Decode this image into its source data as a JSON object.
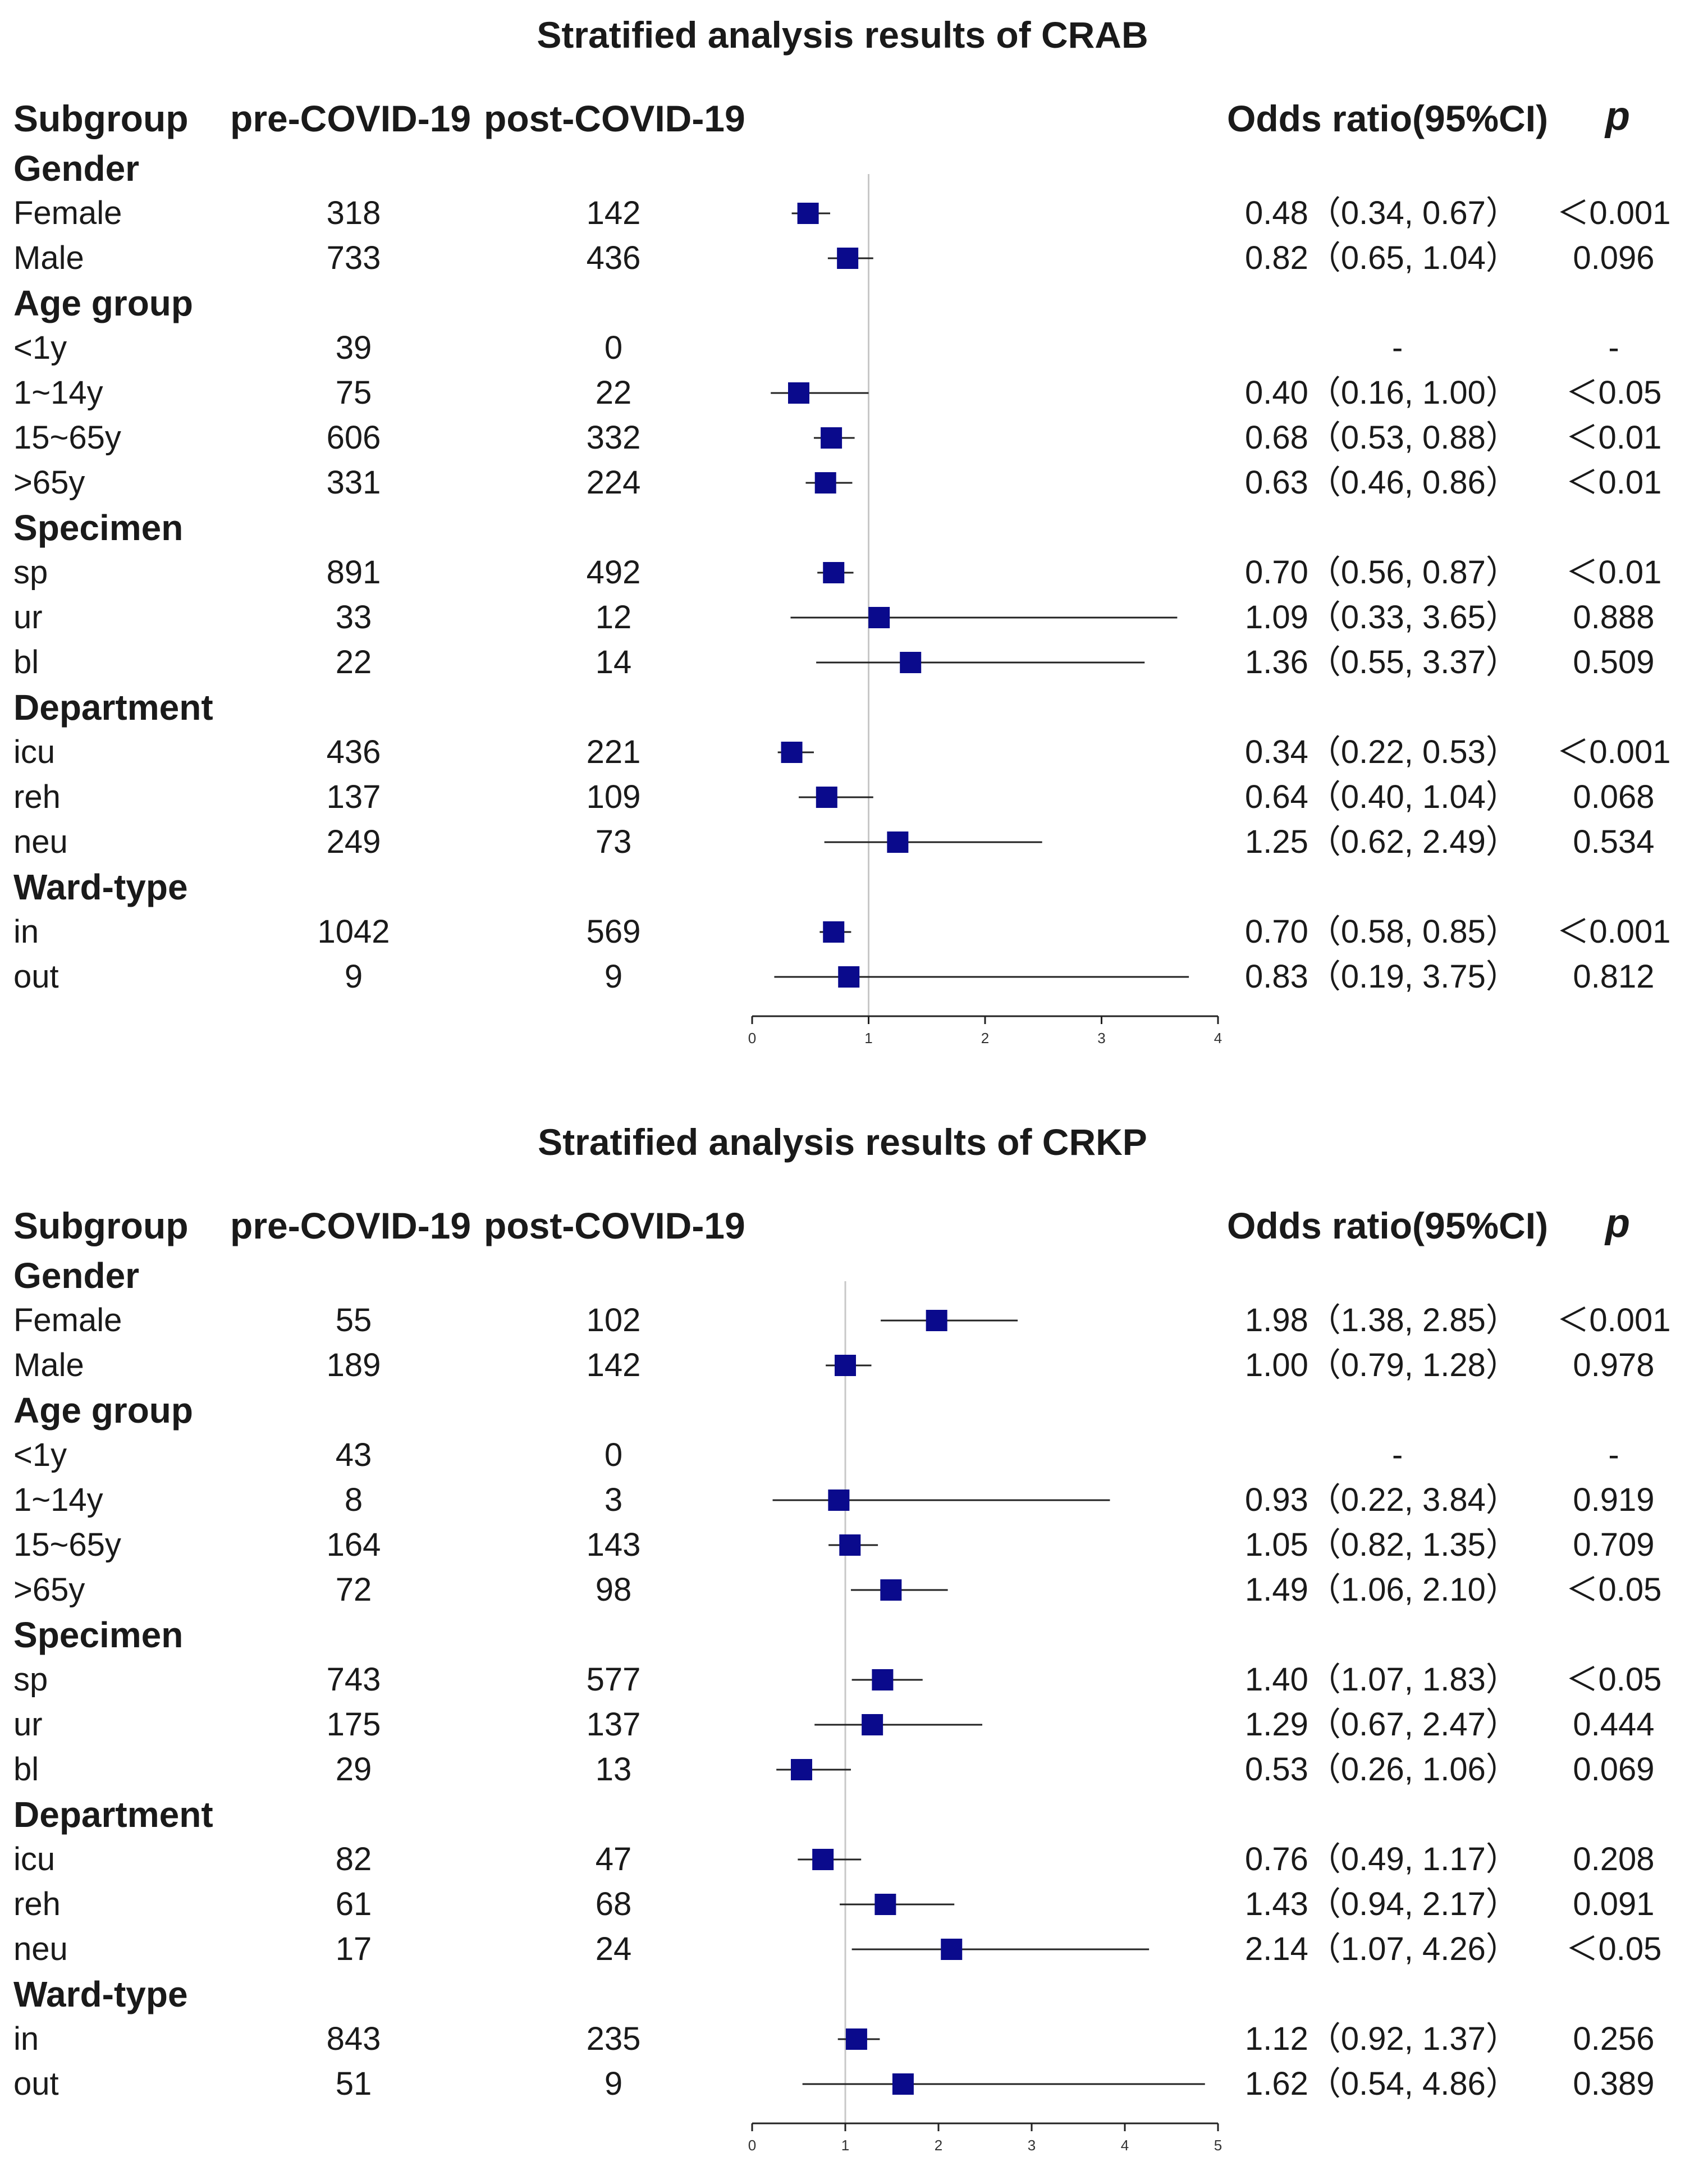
{
  "headers": {
    "subgroup": "Subgroup",
    "pre": "pre-COVID-19",
    "post": "post-COVID-19",
    "or": "Odds ratio(95%CI)",
    "p": "p"
  },
  "colors": {
    "marker": "#0a0a8c",
    "line": "#222222",
    "refline": "#c8c8c8"
  },
  "chart_data": [
    {
      "type": "forest",
      "title": "Stratified analysis results of CRAB",
      "x_ticks": [
        "0",
        "1",
        "2",
        "3",
        "4"
      ],
      "xlim": [
        0,
        4
      ],
      "reference": 1,
      "rows": [
        {
          "group": "Gender"
        },
        {
          "label": "Female",
          "pre": "318",
          "post": "142",
          "or": 0.48,
          "lo": 0.34,
          "hi": 0.67,
          "text": "0.48（0.34,  0.67）",
          "p": "＜0.001"
        },
        {
          "label": "Male",
          "pre": "733",
          "post": "436",
          "or": 0.82,
          "lo": 0.65,
          "hi": 1.04,
          "text": "0.82（0.65,  1.04）",
          "p": "0.096"
        },
        {
          "group": "Age group"
        },
        {
          "label": "<1y",
          "pre": "39",
          "post": "0",
          "text": "-",
          "p": "-"
        },
        {
          "label": "1~14y",
          "pre": "75",
          "post": "22",
          "or": 0.4,
          "lo": 0.16,
          "hi": 1.0,
          "text": "0.40（0.16,  1.00）",
          "p": "＜0.05"
        },
        {
          "label": "15~65y",
          "pre": "606",
          "post": "332",
          "or": 0.68,
          "lo": 0.53,
          "hi": 0.88,
          "text": "0.68（0.53,  0.88）",
          "p": "＜0.01"
        },
        {
          "label": ">65y",
          "pre": "331",
          "post": "224",
          "or": 0.63,
          "lo": 0.46,
          "hi": 0.86,
          "text": "0.63（0.46,  0.86）",
          "p": "＜0.01"
        },
        {
          "group": "Specimen"
        },
        {
          "label": "sp",
          "pre": "891",
          "post": "492",
          "or": 0.7,
          "lo": 0.56,
          "hi": 0.87,
          "text": "0.70（0.56,  0.87）",
          "p": "＜0.01"
        },
        {
          "label": "ur",
          "pre": "33",
          "post": "12",
          "or": 1.09,
          "lo": 0.33,
          "hi": 3.65,
          "text": "1.09（0.33,  3.65）",
          "p": "0.888"
        },
        {
          "label": "bl",
          "pre": "22",
          "post": "14",
          "or": 1.36,
          "lo": 0.55,
          "hi": 3.37,
          "text": "1.36（0.55,  3.37）",
          "p": "0.509"
        },
        {
          "group": "Department"
        },
        {
          "label": "icu",
          "pre": "436",
          "post": "221",
          "or": 0.34,
          "lo": 0.22,
          "hi": 0.53,
          "text": "0.34（0.22,  0.53）",
          "p": "＜0.001"
        },
        {
          "label": "reh",
          "pre": "137",
          "post": "109",
          "or": 0.64,
          "lo": 0.4,
          "hi": 1.04,
          "text": "0.64（0.40,  1.04）",
          "p": "0.068"
        },
        {
          "label": "neu",
          "pre": "249",
          "post": "73",
          "or": 1.25,
          "lo": 0.62,
          "hi": 2.49,
          "text": "1.25（0.62,  2.49）",
          "p": "0.534"
        },
        {
          "group": "Ward-type"
        },
        {
          "label": "in",
          "pre": "1042",
          "post": "569",
          "or": 0.7,
          "lo": 0.58,
          "hi": 0.85,
          "text": "0.70（0.58,  0.85）",
          "p": "＜0.001"
        },
        {
          "label": "out",
          "pre": "9",
          "post": "9",
          "or": 0.83,
          "lo": 0.19,
          "hi": 3.75,
          "text": "0.83（0.19,  3.75）",
          "p": "0.812"
        }
      ]
    },
    {
      "type": "forest",
      "title": "Stratified analysis results of CRKP",
      "x_ticks": [
        "0",
        "1",
        "2",
        "3",
        "4",
        "5"
      ],
      "xlim": [
        0,
        5
      ],
      "reference": 1,
      "rows": [
        {
          "group": "Gender"
        },
        {
          "label": "Female",
          "pre": "55",
          "post": "102",
          "or": 1.98,
          "lo": 1.38,
          "hi": 2.85,
          "text": "1.98（1.38,  2.85）",
          "p": "＜0.001"
        },
        {
          "label": "Male",
          "pre": "189",
          "post": "142",
          "or": 1.0,
          "lo": 0.79,
          "hi": 1.28,
          "text": "1.00（0.79,  1.28）",
          "p": "0.978"
        },
        {
          "group": "Age group"
        },
        {
          "label": "<1y",
          "pre": "43",
          "post": "0",
          "text": "-",
          "p": "-"
        },
        {
          "label": "1~14y",
          "pre": "8",
          "post": "3",
          "or": 0.93,
          "lo": 0.22,
          "hi": 3.84,
          "text": "0.93（0.22,  3.84）",
          "p": "0.919"
        },
        {
          "label": "15~65y",
          "pre": "164",
          "post": "143",
          "or": 1.05,
          "lo": 0.82,
          "hi": 1.35,
          "text": "1.05（0.82,  1.35）",
          "p": "0.709"
        },
        {
          "label": ">65y",
          "pre": "72",
          "post": "98",
          "or": 1.49,
          "lo": 1.06,
          "hi": 2.1,
          "text": "1.49（1.06,  2.10）",
          "p": "＜0.05"
        },
        {
          "group": "Specimen"
        },
        {
          "label": "sp",
          "pre": "743",
          "post": "577",
          "or": 1.4,
          "lo": 1.07,
          "hi": 1.83,
          "text": "1.40（1.07,  1.83）",
          "p": "＜0.05"
        },
        {
          "label": "ur",
          "pre": "175",
          "post": "137",
          "or": 1.29,
          "lo": 0.67,
          "hi": 2.47,
          "text": "1.29（0.67,  2.47）",
          "p": "0.444"
        },
        {
          "label": "bl",
          "pre": "29",
          "post": "13",
          "or": 0.53,
          "lo": 0.26,
          "hi": 1.06,
          "text": "0.53（0.26,  1.06）",
          "p": "0.069"
        },
        {
          "group": "Department"
        },
        {
          "label": "icu",
          "pre": "82",
          "post": "47",
          "or": 0.76,
          "lo": 0.49,
          "hi": 1.17,
          "text": "0.76（0.49,  1.17）",
          "p": "0.208"
        },
        {
          "label": "reh",
          "pre": "61",
          "post": "68",
          "or": 1.43,
          "lo": 0.94,
          "hi": 2.17,
          "text": "1.43（0.94,  2.17）",
          "p": "0.091"
        },
        {
          "label": "neu",
          "pre": "17",
          "post": "24",
          "or": 2.14,
          "lo": 1.07,
          "hi": 4.26,
          "text": "2.14（1.07,  4.26）",
          "p": "＜0.05"
        },
        {
          "group": "Ward-type"
        },
        {
          "label": "in",
          "pre": "843",
          "post": "235",
          "or": 1.12,
          "lo": 0.92,
          "hi": 1.37,
          "text": "1.12（0.92,  1.37）",
          "p": "0.256"
        },
        {
          "label": "out",
          "pre": "51",
          "post": "9",
          "or": 1.62,
          "lo": 0.54,
          "hi": 4.86,
          "text": "1.62（0.54,  4.86）",
          "p": "0.389"
        }
      ]
    }
  ]
}
